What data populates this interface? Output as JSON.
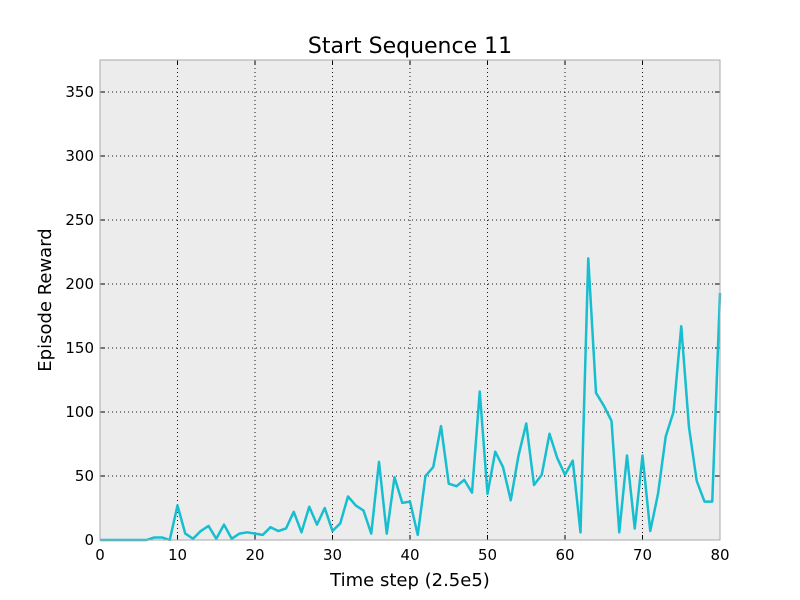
{
  "chart_data": {
    "type": "line",
    "title": "Start Sequence 11",
    "xlabel": "Time step (2.5e5)",
    "ylabel": "Episode Reward",
    "xlim": [
      0,
      80
    ],
    "ylim": [
      0,
      375
    ],
    "xticks": [
      0,
      10,
      20,
      30,
      40,
      50,
      60,
      70,
      80
    ],
    "yticks": [
      0,
      50,
      100,
      150,
      200,
      250,
      300,
      350
    ],
    "grid": true,
    "colors": {
      "line": "#17becf",
      "plot_background": "#ececec",
      "frame": "#aaaaaa"
    },
    "series": [
      {
        "x": [
          0,
          1,
          2,
          3,
          4,
          5,
          6,
          7,
          8,
          9,
          10,
          11,
          12,
          13,
          14,
          15,
          16,
          17,
          18,
          19,
          20,
          21,
          22,
          23,
          24,
          25,
          26,
          27,
          28,
          29,
          30,
          31,
          32,
          33,
          34,
          35,
          36,
          37,
          38,
          39,
          40,
          41,
          42,
          43,
          44,
          45,
          46,
          47,
          48,
          49,
          50,
          51,
          52,
          53,
          54,
          55,
          56,
          57,
          58,
          59,
          60,
          61,
          62,
          63,
          64,
          65,
          66,
          67,
          68,
          69,
          70,
          71,
          72,
          73,
          74,
          75,
          76,
          77,
          78,
          79,
          80
        ],
        "values": [
          0,
          0,
          0,
          0,
          0,
          0,
          0,
          2,
          2,
          0,
          27,
          5,
          1,
          7,
          11,
          1,
          12,
          1,
          5,
          6,
          5,
          4,
          10,
          7,
          9,
          22,
          6,
          26,
          12,
          25,
          7,
          13,
          34,
          27,
          23,
          5,
          61,
          5,
          49,
          29,
          30,
          4,
          50,
          57,
          89,
          44,
          42,
          47,
          37,
          116,
          36,
          69,
          57,
          31,
          66,
          91,
          43,
          51,
          83,
          64,
          51,
          62,
          6,
          220,
          115,
          105,
          93,
          6,
          66,
          9,
          66,
          7,
          36,
          81,
          100,
          167,
          88,
          46,
          30,
          30,
          193
        ]
      }
    ]
  }
}
